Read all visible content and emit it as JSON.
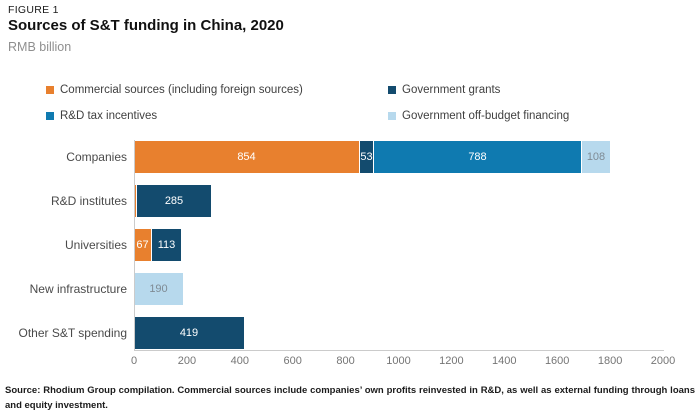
{
  "header": {
    "figure_label": "FIGURE 1",
    "title": "Sources of S&T funding in China, 2020",
    "subtitle": "RMB billion"
  },
  "legend": {
    "items": [
      {
        "label": "Commercial sources (including foreign sources)",
        "color": "#e8802e"
      },
      {
        "label": "Government grants",
        "color": "#134b6e"
      },
      {
        "label": "R&D tax incentives",
        "color": "#0f7ab0"
      },
      {
        "label": "Government off-budget financing",
        "color": "#b7d9ed"
      }
    ]
  },
  "chart_data": {
    "type": "bar",
    "orientation": "horizontal",
    "title": "Sources of S&T funding in China, 2020",
    "unit": "RMB billion",
    "categories": [
      "Companies",
      "R&D institutes",
      "Universities",
      "New infrastructure",
      "Other S&T spending"
    ],
    "series": [
      {
        "name": "Commercial sources (including foreign sources)",
        "color": "#e8802e",
        "label_color": "#ffffff",
        "values": [
          854,
          10,
          67,
          0,
          0
        ],
        "data_labels": [
          "854",
          "",
          "67",
          "",
          ""
        ]
      },
      {
        "name": "Government grants",
        "color": "#134b6e",
        "label_color": "#ffffff",
        "values": [
          53,
          285,
          113,
          0,
          419
        ],
        "data_labels": [
          "53",
          "285",
          "113",
          "",
          "419"
        ]
      },
      {
        "name": "R&D tax incentives",
        "color": "#0f7ab0",
        "label_color": "#ffffff",
        "values": [
          788,
          0,
          0,
          0,
          0
        ],
        "data_labels": [
          "788",
          "",
          "",
          "",
          ""
        ]
      },
      {
        "name": "Government off-budget financing",
        "color": "#b7d9ed",
        "label_color": "#7f8b94",
        "values": [
          108,
          0,
          0,
          190,
          0
        ],
        "data_labels": [
          "108",
          "",
          "",
          "190",
          ""
        ]
      }
    ],
    "xlim": [
      0,
      2000
    ],
    "x_ticks": [
      0,
      200,
      400,
      600,
      800,
      1000,
      1200,
      1400,
      1600,
      1800,
      2000
    ],
    "grid": false,
    "legend_position": "top"
  },
  "footer": {
    "source_note": "Source: Rhodium Group compilation. Commercial sources include companies’ own profits reinvested in R&D, as well as external funding through loans and equity investment."
  }
}
